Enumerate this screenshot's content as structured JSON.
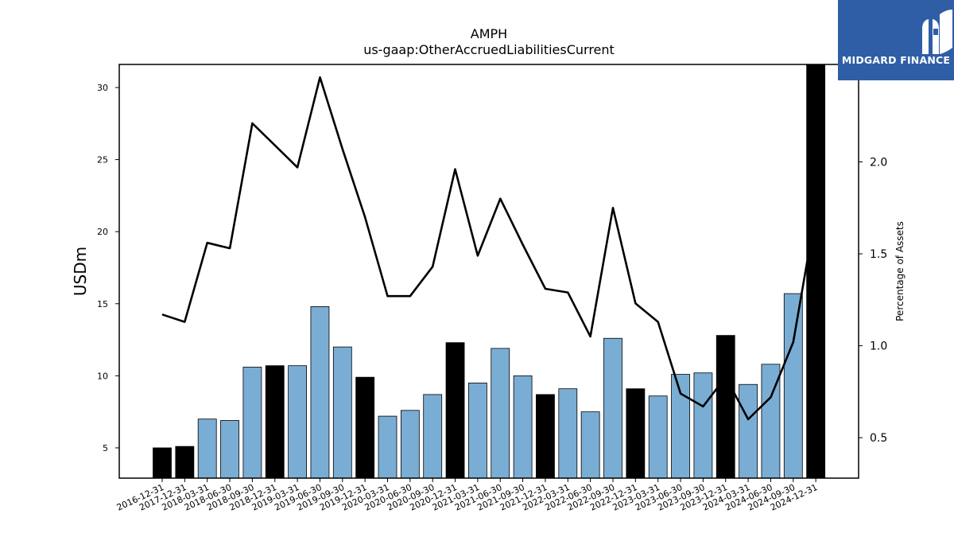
{
  "chart_data": {
    "type": "bar",
    "title": "AMPH",
    "subtitle": "us-gaap:OtherAccruedLiabilitiesCurrent",
    "ylabel": "USDm",
    "y2label": "Percentage of Assets",
    "ylim": [
      2.9,
      31.6
    ],
    "y2lim": [
      0.28,
      2.53
    ],
    "yticks": [
      5,
      10,
      15,
      20,
      25,
      30
    ],
    "y2ticks": [
      "0.5",
      "1.0",
      "1.5",
      "2.0"
    ],
    "categories": [
      "2016-12-31",
      "2017-12-31",
      "2018-03-31",
      "2018-06-30",
      "2018-09-30",
      "2018-12-31",
      "2019-03-31",
      "2019-06-30",
      "2019-09-30",
      "2019-12-31",
      "2020-03-31",
      "2020-06-30",
      "2020-09-30",
      "2020-12-31",
      "2021-03-31",
      "2021-06-30",
      "2021-09-30",
      "2021-12-31",
      "2022-03-31",
      "2022-06-30",
      "2022-09-30",
      "2022-12-31",
      "2023-03-31",
      "2023-06-30",
      "2023-09-30",
      "2023-12-31",
      "2024-03-31",
      "2024-06-30",
      "2024-09-30",
      "2024-12-31"
    ],
    "series": [
      {
        "type": "bar",
        "values": [
          5.0,
          5.1,
          7.0,
          6.9,
          10.6,
          10.7,
          10.7,
          14.8,
          12.0,
          9.9,
          7.2,
          7.6,
          8.7,
          12.3,
          9.5,
          11.9,
          10.0,
          8.7,
          9.1,
          7.5,
          12.6,
          9.1,
          8.6,
          10.1,
          10.2,
          12.8,
          9.4,
          10.8,
          15.7,
          31.6
        ],
        "annual": [
          true,
          true,
          false,
          false,
          false,
          true,
          false,
          false,
          false,
          true,
          false,
          false,
          false,
          true,
          false,
          false,
          false,
          true,
          false,
          false,
          false,
          true,
          false,
          false,
          false,
          true,
          false,
          false,
          false,
          true
        ]
      },
      {
        "type": "line",
        "axis": "right",
        "values": [
          1.17,
          1.13,
          1.56,
          1.53,
          2.21,
          2.09,
          1.97,
          2.46,
          2.07,
          1.7,
          1.27,
          1.27,
          1.43,
          1.96,
          1.49,
          1.8,
          1.55,
          1.31,
          1.29,
          1.05,
          1.75,
          1.23,
          1.13,
          0.74,
          0.67,
          0.83,
          0.6,
          0.72,
          1.02,
          1.73
        ]
      }
    ],
    "colors": {
      "annual_bar": "#000000",
      "quarter_bar": "#7aadd4",
      "line": "#000000"
    },
    "grid": false
  },
  "logo": {
    "text": "MIDGARD FINANCE",
    "background": "#2f5ea6"
  }
}
